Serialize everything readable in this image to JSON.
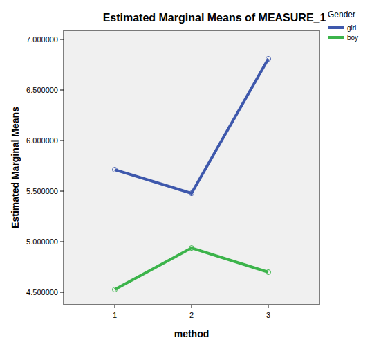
{
  "chart_data": {
    "type": "line",
    "title": "Estimated Marginal Means of MEASURE_1",
    "x_label": "method",
    "y_label": "Estimated Marginal Means",
    "legend_title": "Gender",
    "categories": [
      "1",
      "2",
      "3"
    ],
    "series": [
      {
        "name": "girl",
        "color": "#3e58ac",
        "marker": "circle",
        "values": [
          5.712,
          5.479,
          6.808
        ]
      },
      {
        "name": "boy",
        "color": "#3cb44b",
        "marker": "circle",
        "values": [
          4.527,
          4.938,
          4.699
        ]
      }
    ],
    "ylim": [
      4.377,
      7.089
    ],
    "yticks": [
      {
        "value": 4.5,
        "label": "4.500000"
      },
      {
        "value": 5.0,
        "label": "5.000000"
      },
      {
        "value": 5.5,
        "label": "5.500000"
      },
      {
        "value": 6.0,
        "label": "6.000000"
      },
      {
        "value": 6.5,
        "label": "6.500000"
      },
      {
        "value": 7.0,
        "label": "7.000000"
      }
    ],
    "grid": false,
    "legend": "right"
  }
}
